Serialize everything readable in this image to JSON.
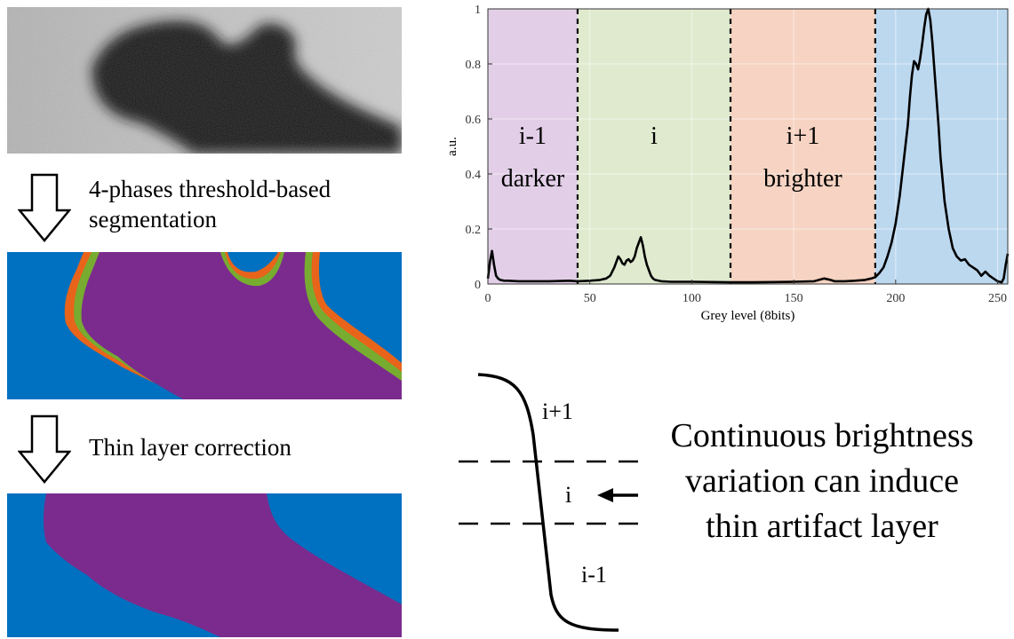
{
  "colors": {
    "blue": "#0070c0",
    "purple": "#7b2b8d",
    "green": "#77ac30",
    "orange": "#e8641b",
    "band_purple": "#e2cfe7",
    "band_green": "#dfeacf",
    "band_orange": "#f6d3c2",
    "band_blue": "#bcd8ef"
  },
  "steps": {
    "segmentation": [
      "4-phases threshold-based",
      "segmentation"
    ],
    "correction": "Thin layer correction"
  },
  "chart_data": {
    "type": "line",
    "xlabel": "Grey level (8bits)",
    "ylabel": "a.u.",
    "xlim": [
      0,
      255
    ],
    "ylim": [
      0,
      1
    ],
    "xticks": [
      0,
      50,
      100,
      150,
      200,
      250
    ],
    "yticks": [
      0,
      0.2,
      0.4,
      0.6,
      0.8,
      1
    ],
    "grid": true,
    "thresholds": [
      44,
      119,
      190
    ],
    "regions": [
      {
        "from": 0,
        "to": 44,
        "labels": [
          "i-1",
          "darker"
        ],
        "color": "#e2cfe7"
      },
      {
        "from": 44,
        "to": 119,
        "labels": [
          "i",
          ""
        ],
        "color": "#dfeacf"
      },
      {
        "from": 119,
        "to": 190,
        "labels": [
          "i+1",
          "brighter"
        ],
        "color": "#f6d3c2"
      },
      {
        "from": 190,
        "to": 255,
        "labels": [
          "",
          ""
        ],
        "color": "#bcd8ef"
      }
    ],
    "series": [
      {
        "x": [
          0,
          1,
          2,
          3,
          4,
          5,
          6,
          8,
          10,
          15,
          20,
          30,
          40,
          44,
          50,
          55,
          58,
          60,
          62,
          63,
          64,
          65,
          66,
          67,
          68,
          69,
          70,
          71,
          72,
          73,
          74,
          75,
          76,
          77,
          78,
          79,
          80,
          81,
          82,
          85,
          90,
          100,
          110,
          119,
          130,
          140,
          150,
          160,
          165,
          168,
          170,
          175,
          180,
          185,
          188,
          190,
          192,
          194,
          196,
          198,
          200,
          202,
          204,
          206,
          207,
          208,
          209,
          210,
          211,
          212,
          213,
          214,
          215,
          216,
          217,
          218,
          219,
          220,
          221,
          222,
          224,
          226,
          228,
          230,
          232,
          234,
          236,
          238,
          240,
          242,
          244,
          246,
          248,
          250,
          252,
          253,
          254,
          255
        ],
        "y": [
          0.02,
          0.08,
          0.12,
          0.07,
          0.03,
          0.02,
          0.015,
          0.012,
          0.012,
          0.01,
          0.01,
          0.01,
          0.012,
          0.01,
          0.012,
          0.015,
          0.02,
          0.03,
          0.06,
          0.08,
          0.1,
          0.09,
          0.075,
          0.07,
          0.085,
          0.09,
          0.08,
          0.085,
          0.1,
          0.13,
          0.15,
          0.17,
          0.14,
          0.1,
          0.07,
          0.05,
          0.03,
          0.02,
          0.015,
          0.01,
          0.008,
          0.008,
          0.007,
          0.006,
          0.006,
          0.007,
          0.008,
          0.01,
          0.02,
          0.015,
          0.01,
          0.01,
          0.012,
          0.015,
          0.02,
          0.025,
          0.04,
          0.06,
          0.1,
          0.15,
          0.22,
          0.32,
          0.45,
          0.58,
          0.68,
          0.76,
          0.81,
          0.8,
          0.78,
          0.82,
          0.87,
          0.93,
          0.98,
          1.0,
          0.96,
          0.88,
          0.78,
          0.68,
          0.58,
          0.46,
          0.3,
          0.2,
          0.13,
          0.1,
          0.085,
          0.09,
          0.07,
          0.06,
          0.05,
          0.03,
          0.045,
          0.03,
          0.02,
          0.01,
          0.006,
          0.02,
          0.07,
          0.11
        ]
      }
    ]
  },
  "schema": {
    "levels": [
      "i+1",
      "i",
      "i-1"
    ]
  },
  "note": [
    "Continuous brightness",
    "variation can induce",
    "thin artifact layer"
  ]
}
